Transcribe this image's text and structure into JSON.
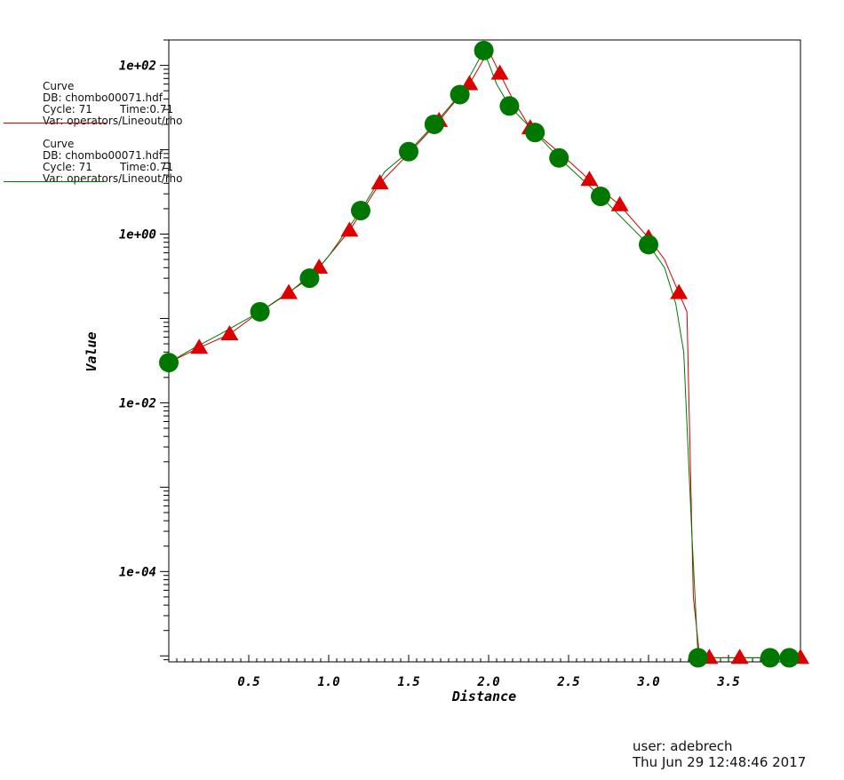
{
  "legend": [
    {
      "title": "Curve",
      "db": "DB: chombo00071.hdf",
      "cycle": "Cycle: 71",
      "time": "Time:0.71",
      "var": "Var: operators/Lineout/rho",
      "color": "#cc0000",
      "marker": "triangle"
    },
    {
      "title": "Curve",
      "db": "DB: chombo00071.hdf",
      "cycle": "Cycle: 71",
      "time": "Time:0.71",
      "var": "Var: operators/Lineout/rho",
      "color": "#007700",
      "marker": "circle"
    }
  ],
  "footer": {
    "user": "user: adebrech",
    "timestamp": "Thu Jun 29 12:48:46 2017"
  },
  "chart_data": {
    "type": "line",
    "xlabel": "Distance",
    "ylabel": "Value",
    "xlim": [
      0,
      3.95
    ],
    "ylim": [
      8.5e-06,
      200
    ],
    "yscale": "log",
    "x_ticks": [
      0.5,
      1.0,
      1.5,
      2.0,
      2.5,
      3.0,
      3.5
    ],
    "x_tick_labels": [
      "0.5",
      "1.0",
      "1.5",
      "2.0",
      "2.5",
      "3.0",
      "3.5"
    ],
    "y_ticks": [
      0.0001,
      0.01,
      1,
      100
    ],
    "y_tick_labels": [
      "1e-04",
      "1e-02",
      "1e+00",
      "1e+02"
    ],
    "grid": false,
    "series": [
      {
        "color": "#cc0000",
        "marker": "triangle",
        "x": [
          0,
          0.19,
          0.38,
          0.57,
          0.75,
          0.94,
          1.13,
          1.32,
          1.5,
          1.69,
          1.88,
          2.0,
          2.07,
          2.15,
          2.26,
          2.45,
          2.63,
          2.82,
          3.0,
          3.1,
          3.19,
          3.24,
          3.28,
          3.32,
          3.38,
          3.57,
          3.76,
          3.95
        ],
        "y": [
          0.03,
          0.045,
          0.065,
          0.12,
          0.2,
          0.4,
          1.1,
          4.0,
          9.0,
          22,
          60,
          150,
          80,
          40,
          18,
          9,
          4.4,
          2.2,
          0.9,
          0.5,
          0.2,
          0.12,
          5e-05,
          9.5e-06,
          9.5e-06,
          9.5e-06,
          9.5e-06,
          9.5e-06
        ]
      },
      {
        "color": "#007700",
        "marker": "circle",
        "x": [
          0,
          0.16,
          0.32,
          0.57,
          0.88,
          1.0,
          1.2,
          1.35,
          1.5,
          1.66,
          1.82,
          1.97,
          2.05,
          2.13,
          2.29,
          2.44,
          2.7,
          3.0,
          3.1,
          3.17,
          3.22,
          3.27,
          3.31,
          3.5,
          3.76,
          3.88,
          3.95
        ],
        "y": [
          0.03,
          0.045,
          0.065,
          0.12,
          0.3,
          0.55,
          1.9,
          5.5,
          9.5,
          20,
          45,
          150,
          60,
          33,
          16,
          8.0,
          2.8,
          0.75,
          0.4,
          0.15,
          0.04,
          0.0003,
          9.5e-06,
          9.5e-06,
          9.5e-06,
          9.5e-06,
          9.5e-06
        ]
      }
    ],
    "markers": [
      {
        "series": 0,
        "x": [
          0.19,
          0.38,
          0.75,
          0.94,
          1.13,
          1.32,
          1.69,
          1.88,
          2.07,
          2.26,
          2.63,
          2.82,
          3.0,
          3.19,
          3.38,
          3.57,
          3.95
        ],
        "y": [
          0.045,
          0.065,
          0.2,
          0.4,
          1.1,
          4.0,
          22,
          60,
          80,
          18,
          4.4,
          2.2,
          0.9,
          0.2,
          9.5e-06,
          9.5e-06,
          9.5e-06
        ]
      },
      {
        "series": 1,
        "x": [
          0,
          0.57,
          0.88,
          1.2,
          1.5,
          1.66,
          1.82,
          1.97,
          2.13,
          2.29,
          2.44,
          2.7,
          3.0,
          3.31,
          3.76,
          3.88
        ],
        "y": [
          0.03,
          0.12,
          0.3,
          1.9,
          9.5,
          20,
          45,
          150,
          33,
          16,
          8.0,
          2.8,
          0.75,
          9.5e-06,
          9.5e-06,
          9.5e-06
        ]
      }
    ]
  }
}
